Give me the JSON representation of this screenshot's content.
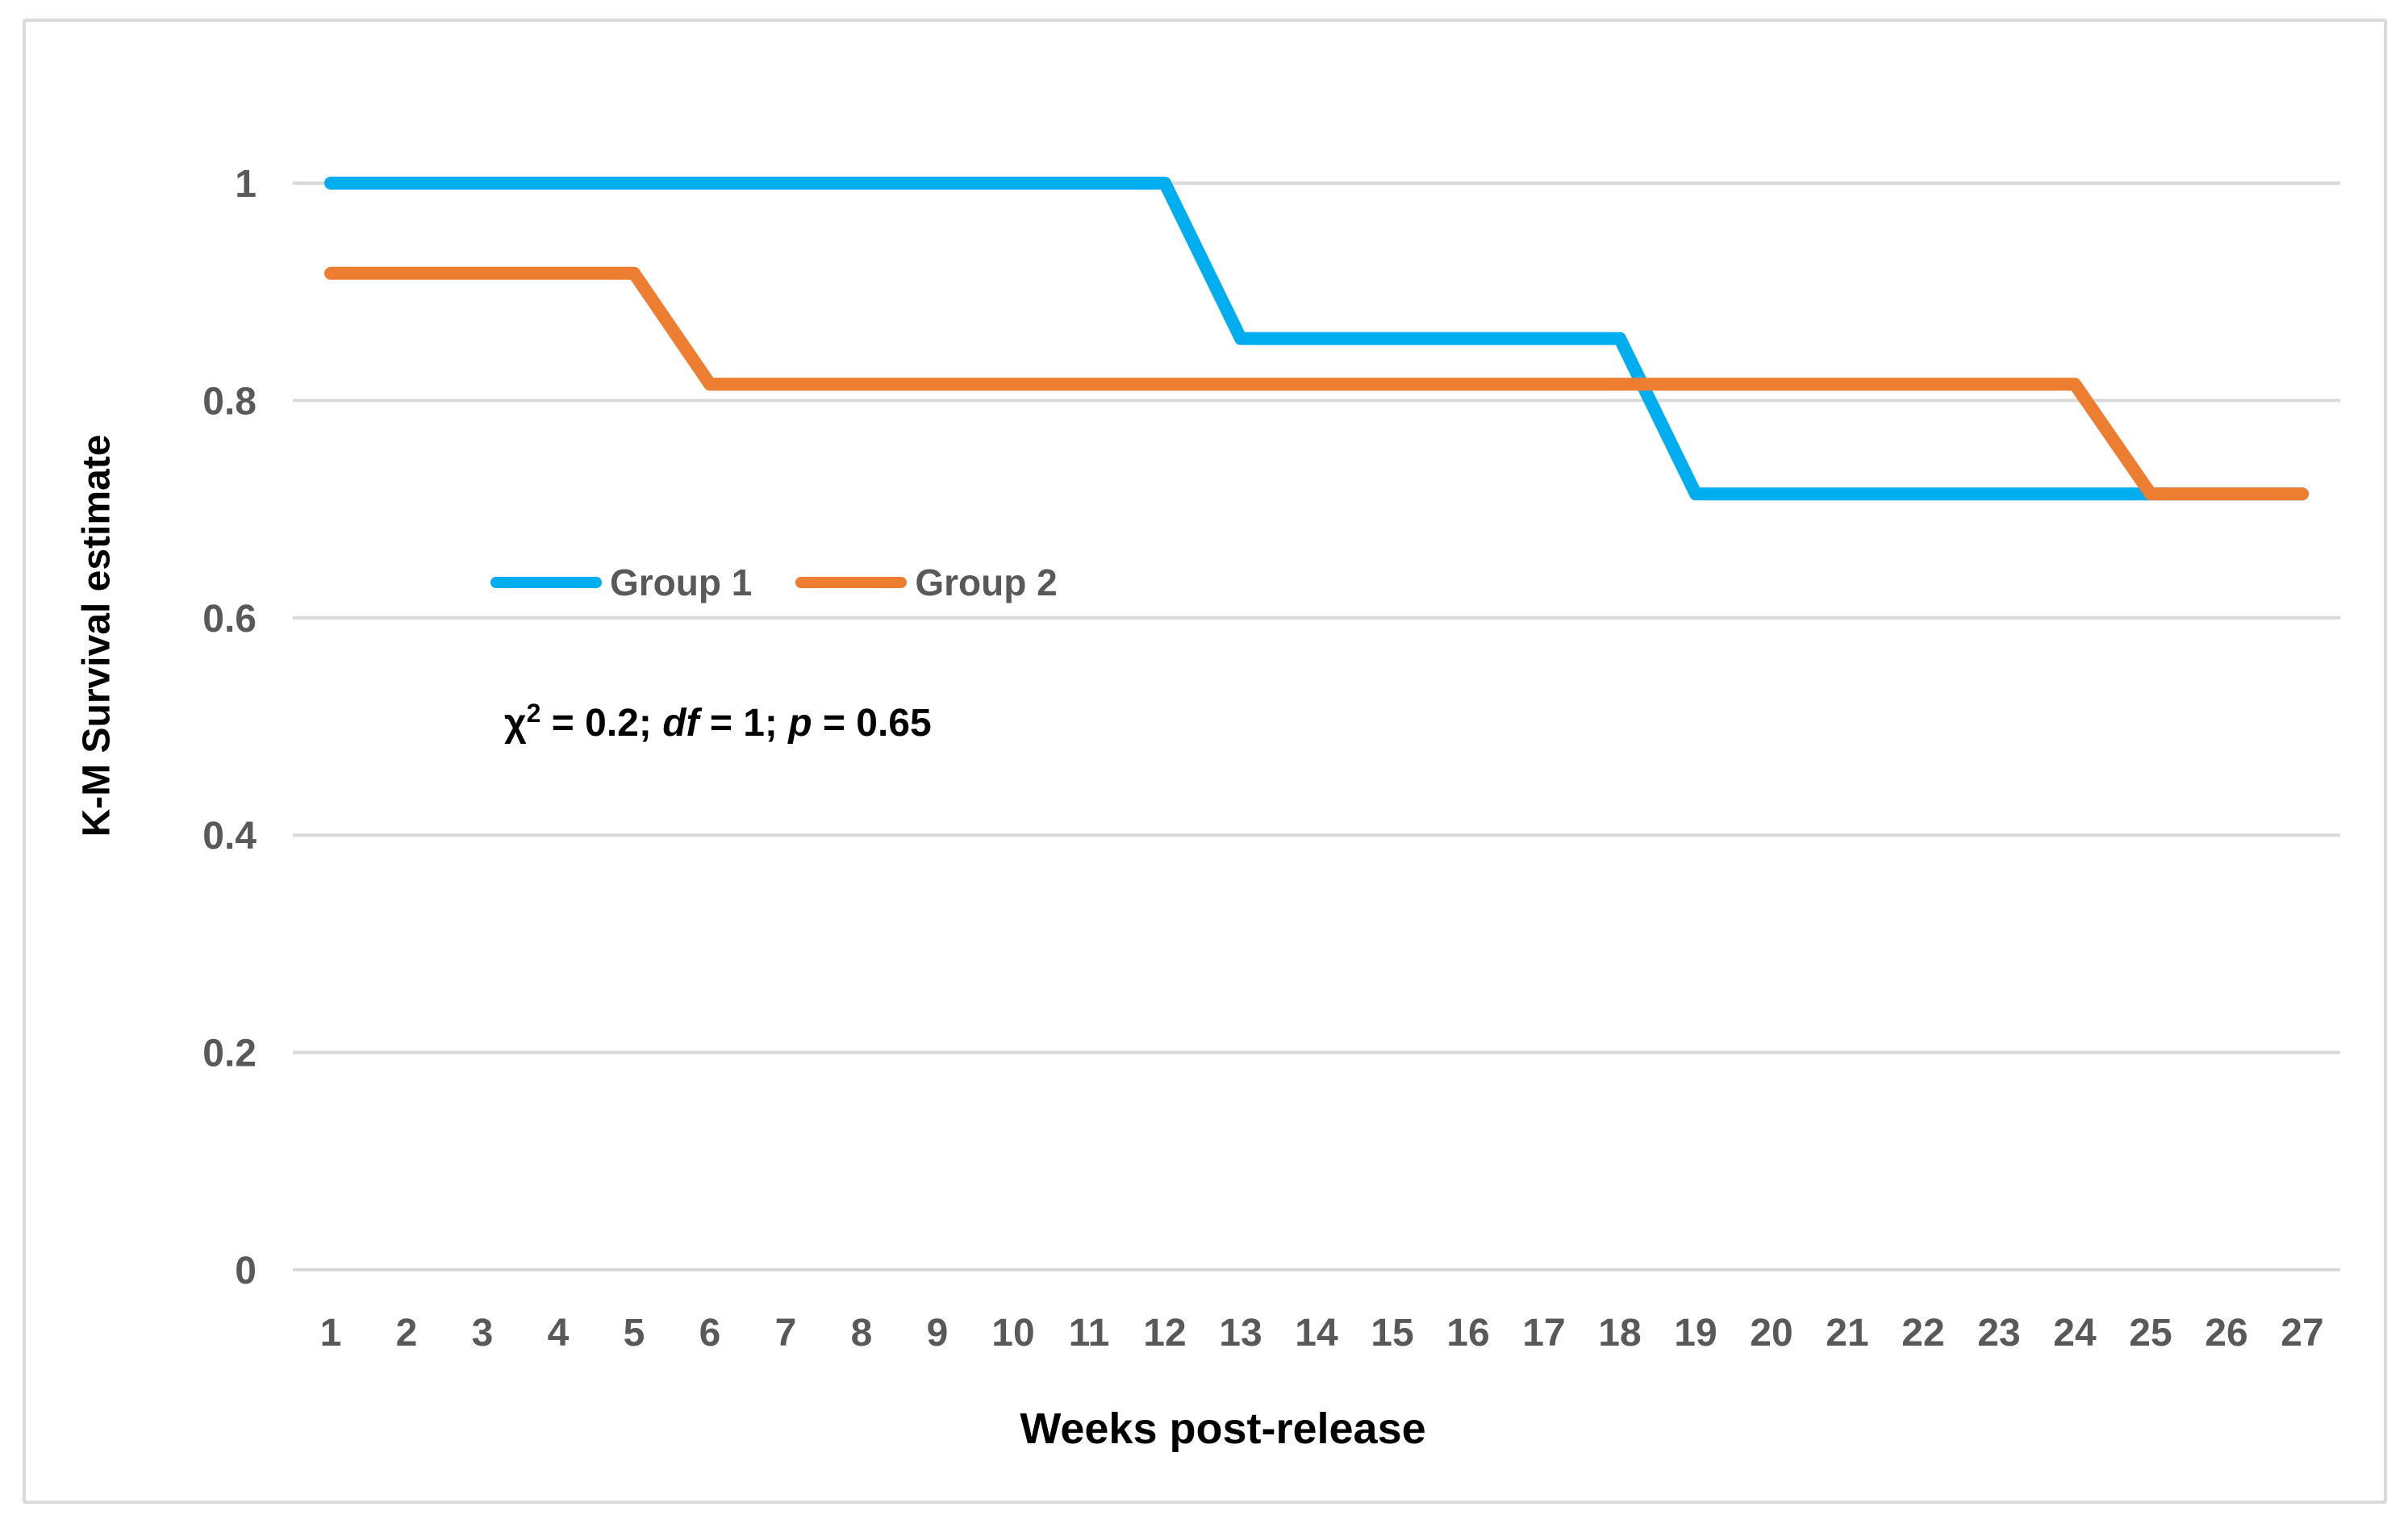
{
  "chart_data": {
    "type": "line",
    "title": "",
    "xlabel": "Weeks post-release",
    "ylabel": "K-M Survival estimate",
    "x": [
      1,
      2,
      3,
      4,
      5,
      6,
      7,
      8,
      9,
      10,
      11,
      12,
      13,
      14,
      15,
      16,
      17,
      18,
      19,
      20,
      21,
      22,
      23,
      24,
      25,
      26,
      27
    ],
    "series": [
      {
        "name": "Group 1",
        "color": "#00AEEF",
        "values": [
          1,
          1,
          1,
          1,
          1,
          1,
          1,
          1,
          1,
          1,
          1,
          1,
          0.857,
          0.857,
          0.857,
          0.857,
          0.857,
          0.857,
          0.714,
          0.714,
          0.714,
          0.714,
          0.714,
          0.714,
          0.714,
          0.714,
          0.714
        ]
      },
      {
        "name": "Group 2",
        "color": "#ED7D31",
        "values": [
          0.917,
          0.917,
          0.917,
          0.917,
          0.917,
          0.815,
          0.815,
          0.815,
          0.815,
          0.815,
          0.815,
          0.815,
          0.815,
          0.815,
          0.815,
          0.815,
          0.815,
          0.815,
          0.815,
          0.815,
          0.815,
          0.815,
          0.815,
          0.815,
          0.714,
          0.714,
          0.714
        ]
      }
    ],
    "ylim": [
      0,
      1
    ],
    "yticks": [
      1,
      0.8,
      0.6,
      0.4,
      0.2,
      0
    ],
    "ytick_labels": [
      "1",
      "0.8",
      "0.6",
      "0.4",
      "0.2",
      "0"
    ],
    "grid": true,
    "legend": {
      "position": "inside-upper-left",
      "entries": [
        "Group 1",
        "Group 2"
      ]
    },
    "annotation": {
      "text": "χ² = 0.2; df = 1; p = 0.65",
      "parts": {
        "chi": "χ",
        "sup": "2",
        "seg1": " = 0.2; ",
        "df": "df",
        "seg2": " = 1; ",
        "p": "p",
        "seg3": " = 0.65"
      }
    },
    "colors": {
      "group1": "#00AEEF",
      "group2": "#ED7D31",
      "gridline": "#D9D9D9",
      "tick_label": "#595959",
      "legend_text": "#595959",
      "frame_border": "#DBDBDB",
      "axis_title": "#000000"
    }
  }
}
